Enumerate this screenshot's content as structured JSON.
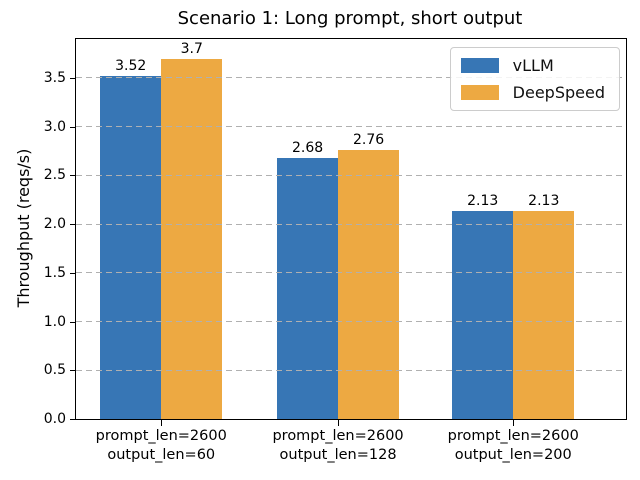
{
  "chart_data": {
    "type": "bar",
    "title": "Scenario 1: Long prompt, short output",
    "xlabel": "",
    "ylabel": "Throughput (reqs/s)",
    "ylim": [
      0,
      3.9
    ],
    "yticks": [
      0,
      0.5,
      1,
      1.5,
      2,
      2.5,
      3,
      3.5
    ],
    "ytick_labels": [
      "0.0",
      "0.5",
      "1.0",
      "1.5",
      "2.0",
      "2.5",
      "3.0",
      "3.5"
    ],
    "grid": "horizontal dashed gridlines drawn over bars",
    "legend_position": "upper right",
    "categories": [
      [
        "prompt_len=2600",
        "output_len=60"
      ],
      [
        "prompt_len=2600",
        "output_len=128"
      ],
      [
        "prompt_len=2600",
        "output_len=200"
      ]
    ],
    "series": [
      {
        "name": "vLLM",
        "color": "#3776b5",
        "values": [
          3.52,
          2.68,
          2.13
        ],
        "labels": [
          "3.52",
          "2.68",
          "2.13"
        ]
      },
      {
        "name": "DeepSpeed",
        "color": "#eda942",
        "values": [
          3.7,
          2.76,
          2.13
        ],
        "labels": [
          "3.7",
          "2.76",
          "2.13"
        ]
      }
    ]
  }
}
